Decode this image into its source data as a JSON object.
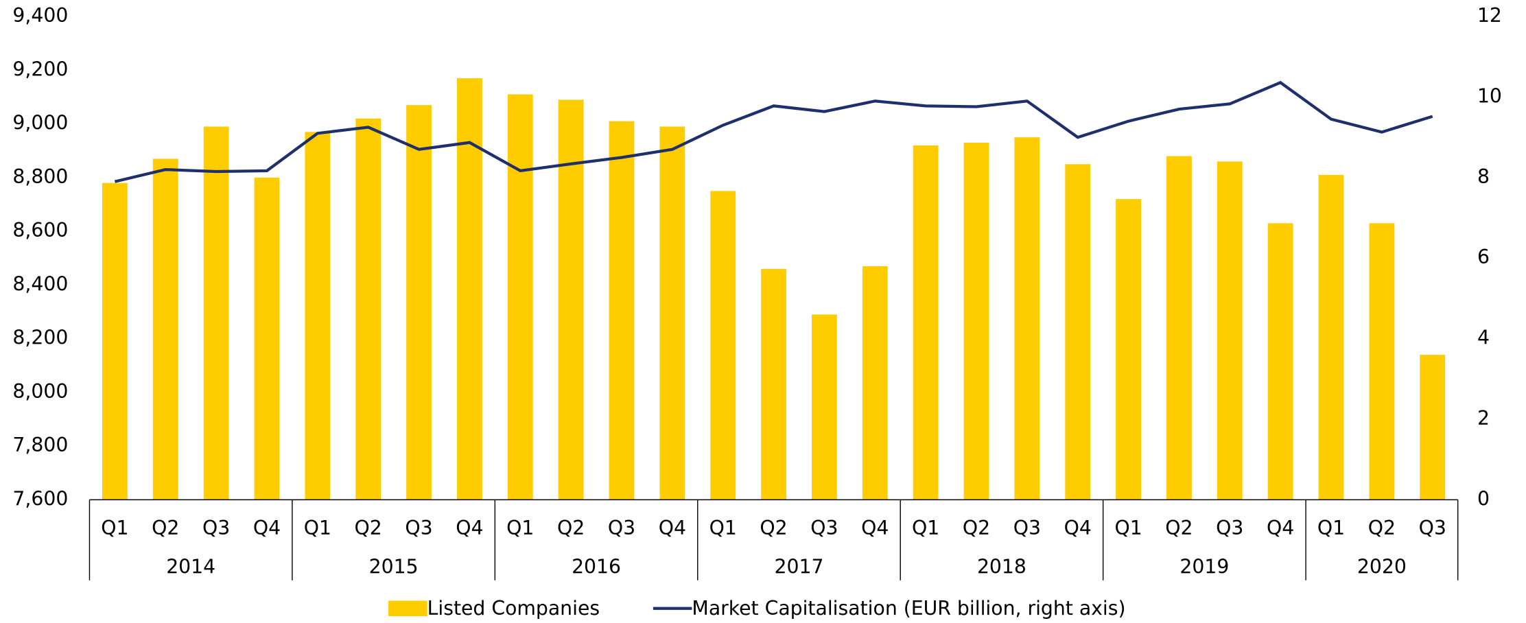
{
  "chart_data": {
    "type": "bar_line",
    "categories": [
      "Q1",
      "Q2",
      "Q3",
      "Q4",
      "Q1",
      "Q2",
      "Q3",
      "Q4",
      "Q1",
      "Q2",
      "Q3",
      "Q4",
      "Q1",
      "Q2",
      "Q3",
      "Q4",
      "Q1",
      "Q2",
      "Q3",
      "Q4",
      "Q1",
      "Q2",
      "Q3",
      "Q4",
      "Q1",
      "Q2",
      "Q3"
    ],
    "groups": [
      "2014",
      "2015",
      "2016",
      "2017",
      "2018",
      "2019",
      "2020"
    ],
    "series": [
      {
        "name": "Listed Companies",
        "type": "bar",
        "color": "#ffcc00",
        "values": [
          8780,
          8870,
          8990,
          8800,
          8970,
          9020,
          9070,
          9170,
          9110,
          9090,
          9010,
          8990,
          8750,
          8460,
          8290,
          8470,
          8920,
          8930,
          8950,
          8850,
          8720,
          8880,
          8860,
          8630,
          8810,
          8630,
          8140
        ]
      },
      {
        "name": "Market Capitalisation (EUR billion, right axis)",
        "type": "line",
        "axis": "y2",
        "color": "#1f2f6b",
        "values": [
          7.9,
          8.2,
          8.15,
          8.17,
          9.1,
          9.25,
          8.7,
          8.87,
          8.17,
          8.34,
          8.5,
          8.7,
          9.3,
          9.78,
          9.64,
          9.9,
          9.78,
          9.76,
          9.9,
          9.0,
          9.4,
          9.7,
          9.83,
          10.36,
          9.45,
          9.13,
          9.52
        ]
      }
    ],
    "ylim": [
      7600,
      9400
    ],
    "yticks": [
      {
        "value": 7600,
        "label": "7,600"
      },
      {
        "value": 7800,
        "label": "7,800"
      },
      {
        "value": 8000,
        "label": "8,000"
      },
      {
        "value": 8200,
        "label": "8,200"
      },
      {
        "value": 8400,
        "label": "8,400"
      },
      {
        "value": 8600,
        "label": "8,600"
      },
      {
        "value": 8800,
        "label": "8,800"
      },
      {
        "value": 9000,
        "label": "9,000"
      },
      {
        "value": 9200,
        "label": "9,200"
      },
      {
        "value": 9400,
        "label": "9,400"
      }
    ],
    "y2lim": [
      0,
      12
    ],
    "y2ticks": [
      0,
      2,
      4,
      6,
      8,
      10,
      12
    ],
    "grid": false,
    "legend": "bottom"
  }
}
